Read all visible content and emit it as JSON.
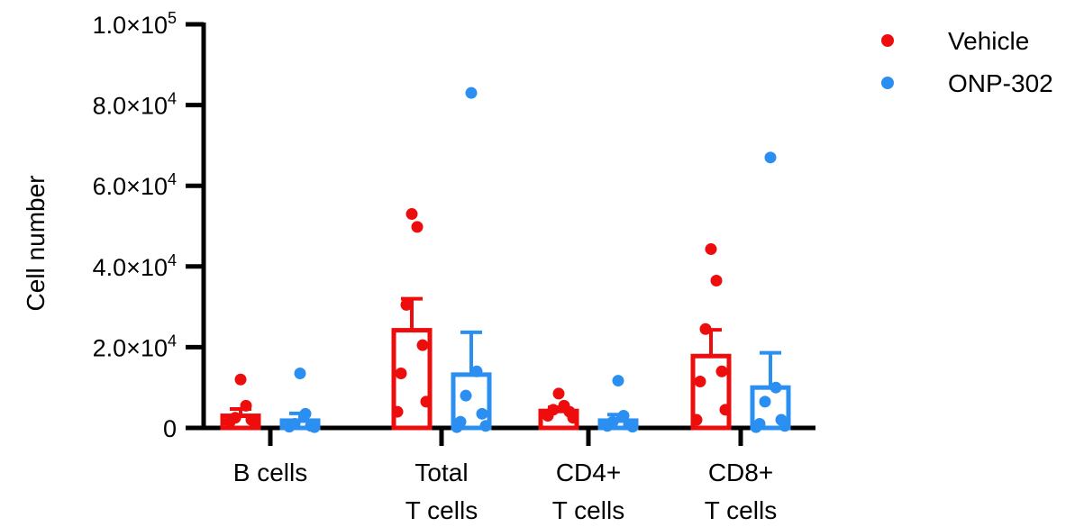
{
  "chart_data": {
    "type": "bar",
    "ylabel": "Cell number",
    "ylim": [
      0,
      100000
    ],
    "yticks": [
      {
        "value": 0,
        "mantissa": "0",
        "exp": ""
      },
      {
        "value": 20000,
        "mantissa": "2.0×10",
        "exp": "4"
      },
      {
        "value": 40000,
        "mantissa": "4.0×10",
        "exp": "4"
      },
      {
        "value": 60000,
        "mantissa": "6.0×10",
        "exp": "4"
      },
      {
        "value": 80000,
        "mantissa": "8.0×10",
        "exp": "4"
      },
      {
        "value": 100000,
        "mantissa": "1.0×10",
        "exp": "5"
      }
    ],
    "categories": [
      [
        "B cells"
      ],
      [
        "Total",
        "T cells"
      ],
      [
        "CD4+",
        "T cells"
      ],
      [
        "CD8+",
        "T cells"
      ]
    ],
    "legend_position": "top-right",
    "series": [
      {
        "name": "Vehicle",
        "color": "#ee0d0d",
        "means": [
          3000,
          24200,
          4200,
          17800
        ],
        "sem": [
          1700,
          7800,
          900,
          6500
        ],
        "points": [
          [
            12000,
            5500,
            2500,
            2000,
            1500,
            1200
          ],
          [
            53000,
            49800,
            30500,
            20500,
            13500,
            6500,
            4000
          ],
          [
            8500,
            5500,
            4500,
            4000,
            3000,
            2500
          ],
          [
            44300,
            36500,
            24500,
            14000,
            11500,
            4500,
            2000
          ]
        ]
      },
      {
        "name": "ONP-302",
        "color": "#2b8ff2",
        "means": [
          1800,
          13200,
          1800,
          10000
        ],
        "sem": [
          1800,
          10500,
          1500,
          8600
        ],
        "points": [
          [
            13500,
            3500,
            1000,
            500,
            300,
            200
          ],
          [
            83000,
            14000,
            8000,
            3500,
            1500,
            500,
            200
          ],
          [
            11700,
            3000,
            1500,
            800,
            500,
            300
          ],
          [
            67000,
            10000,
            6500,
            2000,
            1000,
            500,
            200
          ]
        ]
      }
    ]
  }
}
